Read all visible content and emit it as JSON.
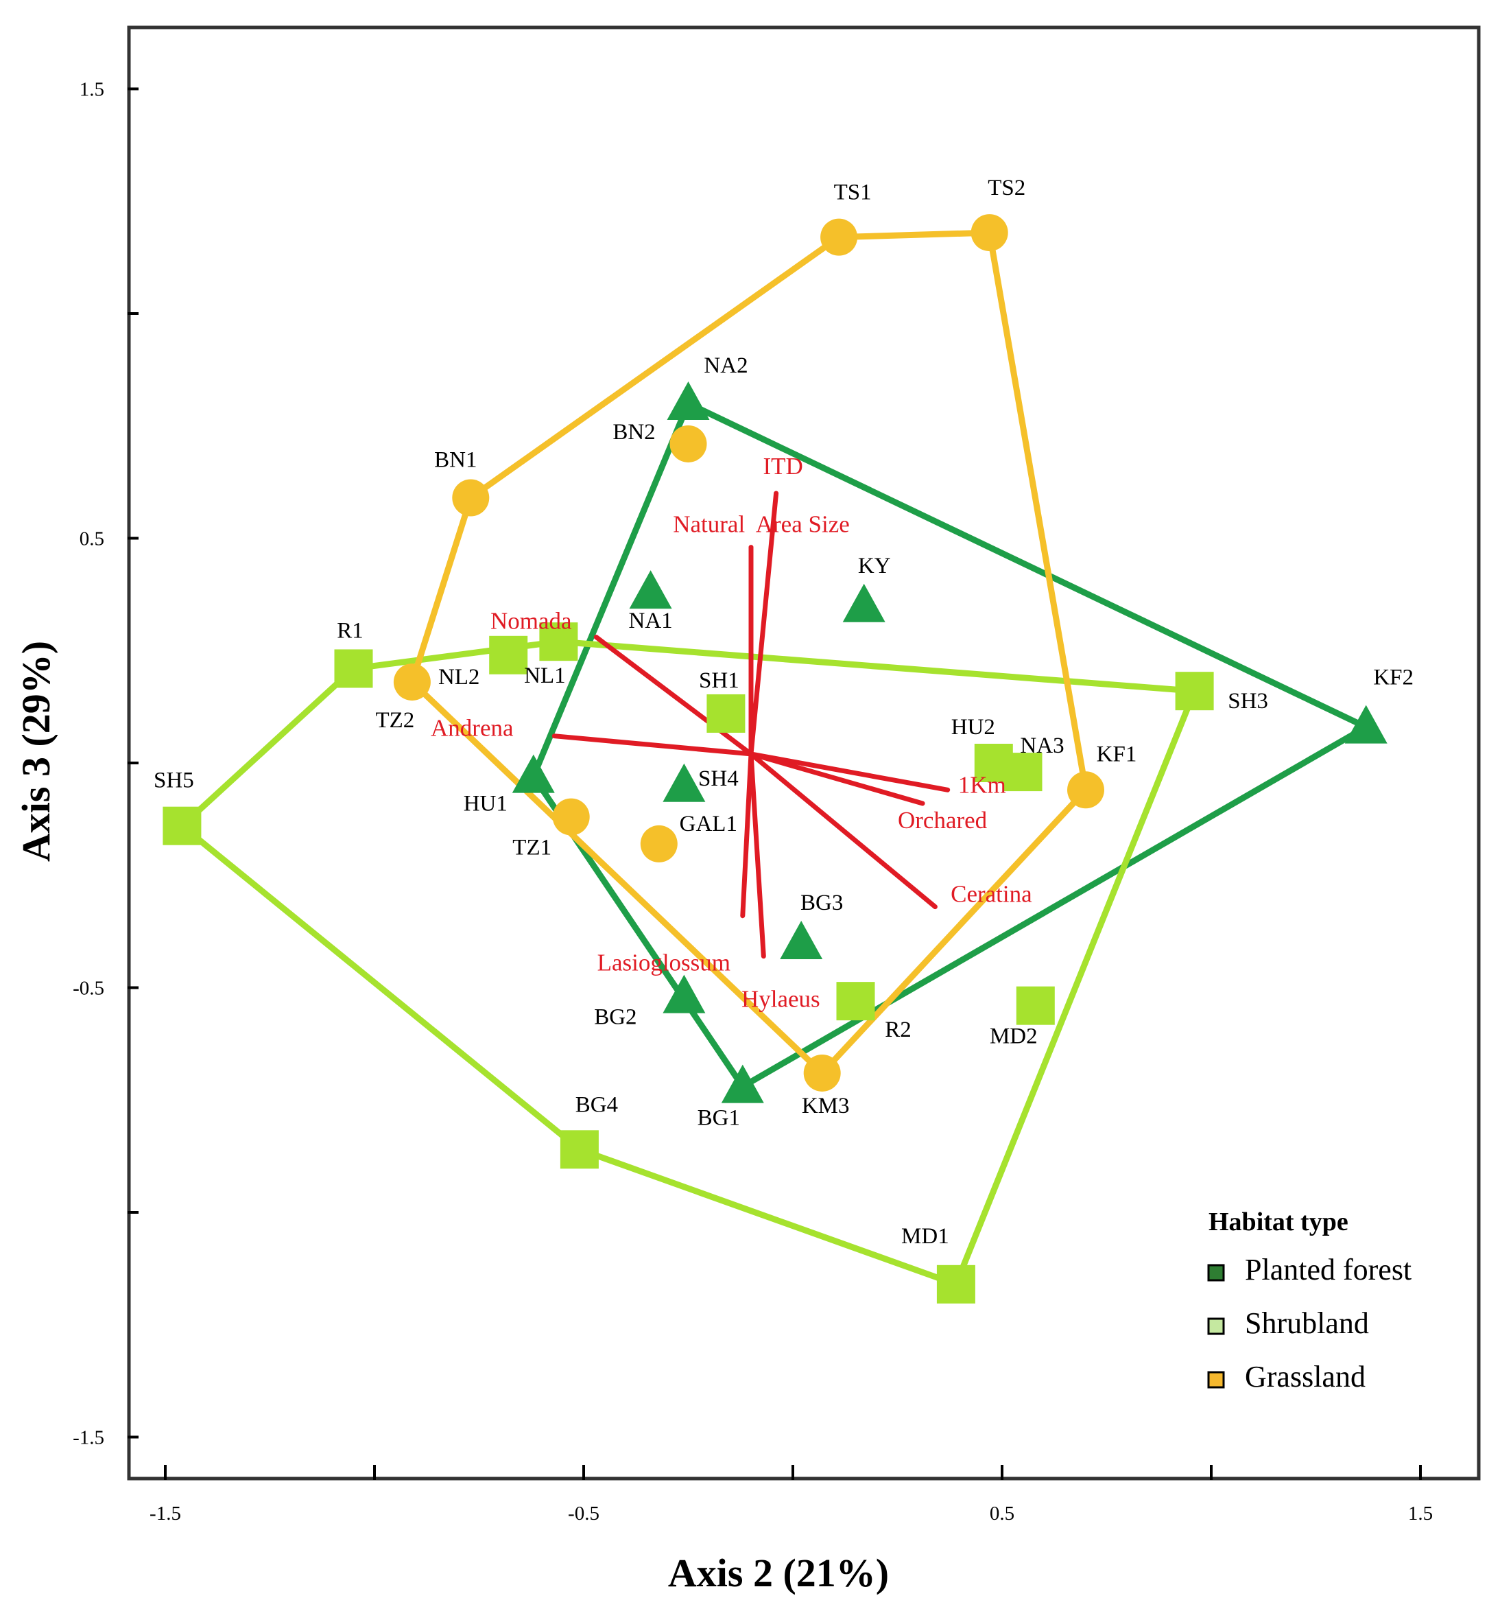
{
  "chart_data": {
    "type": "scatter",
    "subtype": "ordination biplot",
    "xlabel": "Axis 2 (21%)",
    "ylabel": "Axis 3 (29%)",
    "xlim": [
      -1.58,
      1.64
    ],
    "ylim": [
      -1.58,
      1.65
    ],
    "x_ticks": [
      -1.5,
      -1.0,
      -0.5,
      0.0,
      0.5,
      1.0,
      1.5
    ],
    "x_tick_labels": [
      "-1.5",
      "",
      "-0.5",
      "",
      "0.5",
      "",
      "1.5"
    ],
    "y_ticks": [
      1.5,
      1.0,
      0.5,
      0.0,
      -0.5,
      -1.0,
      -1.5
    ],
    "y_tick_labels": [
      "1.5",
      "",
      "0.5",
      "",
      "-0.5",
      "",
      "-1.5"
    ],
    "colors": {
      "Planted forest": "#1e9e48",
      "Shrubland": "#a6e22e",
      "Grassland": "#f5c02a",
      "vector": "#e01b24"
    },
    "legend": {
      "title": "Habitat type",
      "position": "bottom-right",
      "entries": [
        {
          "name": "Planted forest",
          "color": "#2e7d32"
        },
        {
          "name": "Shrubland",
          "color": "#c5e8a0"
        },
        {
          "name": "Grassland",
          "color": "#f5b82e"
        }
      ]
    },
    "series": [
      {
        "name": "Planted forest",
        "marker": "triangle",
        "points": [
          {
            "label": "NA2",
            "x": -0.25,
            "y": 0.8
          },
          {
            "label": "NA1",
            "x": -0.34,
            "y": 0.38
          },
          {
            "label": "KY",
            "x": 0.17,
            "y": 0.35
          },
          {
            "label": "KF2",
            "x": 1.37,
            "y": 0.08
          },
          {
            "label": "HU1",
            "x": -0.62,
            "y": -0.03
          },
          {
            "label": "SH4",
            "x": -0.26,
            "y": -0.05
          },
          {
            "label": "BG3",
            "x": 0.02,
            "y": -0.4
          },
          {
            "label": "BG2",
            "x": -0.26,
            "y": -0.52
          },
          {
            "label": "BG1",
            "x": -0.12,
            "y": -0.72
          }
        ],
        "hull": [
          "NA2",
          "KF2",
          "BG1",
          "HU1"
        ]
      },
      {
        "name": "Shrubland",
        "marker": "square",
        "points": [
          {
            "label": "R1",
            "x": -1.05,
            "y": 0.21
          },
          {
            "label": "NL2",
            "x": -0.68,
            "y": 0.24
          },
          {
            "label": "NL1",
            "x": -0.56,
            "y": 0.27
          },
          {
            "label": "SH1",
            "x": -0.16,
            "y": 0.11
          },
          {
            "label": "SH3",
            "x": 0.96,
            "y": 0.16
          },
          {
            "label": "HU2",
            "x": 0.48,
            "y": 0.0
          },
          {
            "label": "NA3",
            "x": 0.55,
            "y": -0.02
          },
          {
            "label": "SH5",
            "x": -1.46,
            "y": -0.14
          },
          {
            "label": "R2",
            "x": 0.15,
            "y": -0.53
          },
          {
            "label": "MD2",
            "x": 0.58,
            "y": -0.54
          },
          {
            "label": "BG4",
            "x": -0.51,
            "y": -0.86
          },
          {
            "label": "MD1",
            "x": 0.39,
            "y": -1.16
          }
        ],
        "hull": [
          "R1",
          "NL1",
          "SH3",
          "MD1",
          "BG4",
          "SH5"
        ]
      },
      {
        "name": "Grassland",
        "marker": "circle",
        "points": [
          {
            "label": "TS1",
            "x": 0.11,
            "y": 1.17
          },
          {
            "label": "TS2",
            "x": 0.47,
            "y": 1.18
          },
          {
            "label": "BN2",
            "x": -0.25,
            "y": 0.71
          },
          {
            "label": "BN1",
            "x": -0.77,
            "y": 0.59
          },
          {
            "label": "TZ2",
            "x": -0.91,
            "y": 0.18
          },
          {
            "label": "KF1",
            "x": 0.7,
            "y": -0.06
          },
          {
            "label": "TZ1",
            "x": -0.53,
            "y": -0.12
          },
          {
            "label": "GAL1",
            "x": -0.32,
            "y": -0.18
          },
          {
            "label": "KM3",
            "x": 0.07,
            "y": -0.69
          }
        ],
        "hull": [
          "TS1",
          "TS2",
          "KF1",
          "KM3",
          "TZ2",
          "BN1"
        ]
      }
    ],
    "vectors": {
      "origin": [
        -0.1,
        0.02
      ],
      "items": [
        {
          "label": "ITD",
          "x": -0.04,
          "y": 0.6
        },
        {
          "label": "Natural  Area Size",
          "x": -0.1,
          "y": 0.48
        },
        {
          "label": "Nomada",
          "x": -0.47,
          "y": 0.28
        },
        {
          "label": "Andrena",
          "x": -0.57,
          "y": 0.06
        },
        {
          "label": "1Km",
          "x": 0.37,
          "y": -0.06
        },
        {
          "label": "Orchared",
          "x": 0.31,
          "y": -0.09
        },
        {
          "label": "Ceratina",
          "x": 0.34,
          "y": -0.32
        },
        {
          "label": "Lasioglossum",
          "x": -0.12,
          "y": -0.34
        },
        {
          "label": "Hylaeus",
          "x": -0.07,
          "y": -0.43
        }
      ]
    }
  }
}
